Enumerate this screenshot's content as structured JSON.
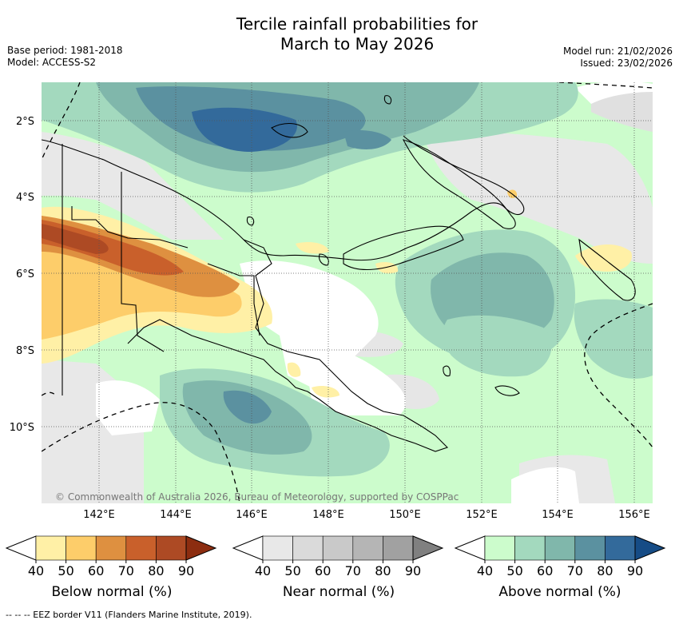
{
  "header": {
    "title_line1": "Tercile rainfall probabilities for",
    "title_line2": "March to May 2026",
    "base_period": "Base period: 1981-2018",
    "model": "Model: ACCESS-S2",
    "model_run": "Model run: 21/02/2026",
    "issued": "Issued: 23/02/2026"
  },
  "map": {
    "copyright": "© Commonwealth of Australia 2026, Bureau of Meteorology, supported by COSPPac",
    "lat_labels": [
      "2°S",
      "4°S",
      "6°S",
      "8°S",
      "10°S"
    ],
    "lon_labels": [
      "142°E",
      "144°E",
      "146°E",
      "148°E",
      "150°E",
      "152°E",
      "154°E",
      "156°E"
    ]
  },
  "colorbars": [
    {
      "title": "Below normal (%)",
      "ticks": [
        "40",
        "50",
        "60",
        "70",
        "80",
        "90"
      ],
      "colors": [
        "#ffffff",
        "#fff0a6",
        "#fdcd6a",
        "#de9040",
        "#c9602b",
        "#ad4a24",
        "#8c2d10"
      ]
    },
    {
      "title": "Near normal (%)",
      "ticks": [
        "40",
        "50",
        "60",
        "70",
        "80",
        "90"
      ],
      "colors": [
        "#ffffff",
        "#e8e8e8",
        "#dadada",
        "#c9c9c9",
        "#b5b5b5",
        "#a1a1a1",
        "#808080"
      ]
    },
    {
      "title": "Above normal (%)",
      "ticks": [
        "40",
        "50",
        "60",
        "70",
        "80",
        "90"
      ],
      "colors": [
        "#ffffff",
        "#ccfccc",
        "#a3d9be",
        "#80b7ab",
        "#5b91a0",
        "#336a9b",
        "#164c86"
      ]
    }
  ],
  "footnote": "--  --  -- EEZ border V11 (Flanders Marine Institute, 2019)."
}
